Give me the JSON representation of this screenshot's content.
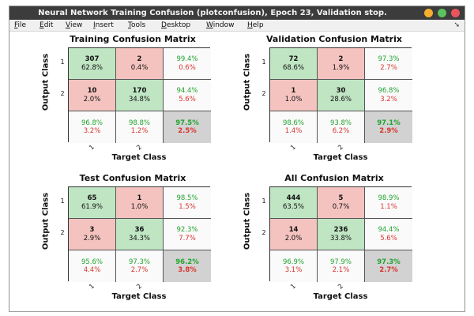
{
  "window": {
    "title": "Neural Network Training Confusion (plotconfusion), Epoch 23, Validation stop."
  },
  "menu": [
    {
      "mnemonic": "F",
      "rest": "ile"
    },
    {
      "mnemonic": "E",
      "rest": "dit"
    },
    {
      "mnemonic": "V",
      "rest": "iew"
    },
    {
      "mnemonic": "I",
      "rest": "nsert"
    },
    {
      "mnemonic": "T",
      "rest": "ools"
    },
    {
      "mnemonic": "D",
      "rest": "esktop"
    },
    {
      "mnemonic": "W",
      "rest": "indow"
    },
    {
      "mnemonic": "H",
      "rest": "elp"
    }
  ],
  "menu_arrow": "➘",
  "ylabel": "Output Class",
  "xlabel": "Target Class",
  "class_labels": [
    "1",
    "2"
  ],
  "colors": {
    "correct": "#bfe5c3",
    "incorrect": "#f4c3bf",
    "summary": "#d2d2d2",
    "pct_good": "#22a32e",
    "pct_bad": "#d9352f"
  },
  "panels": [
    {
      "title": "Training Confusion Matrix",
      "cells": [
        {
          "a": "307",
          "b": "62.8%"
        },
        {
          "a": "2",
          "b": "0.4%"
        },
        {
          "a": "99.4%",
          "b": "0.6%"
        },
        {
          "a": "10",
          "b": "2.0%"
        },
        {
          "a": "170",
          "b": "34.8%"
        },
        {
          "a": "94.4%",
          "b": "5.6%"
        },
        {
          "a": "96.8%",
          "b": "3.2%"
        },
        {
          "a": "98.8%",
          "b": "1.2%"
        },
        {
          "a": "97.5%",
          "b": "2.5%"
        }
      ]
    },
    {
      "title": "Validation Confusion Matrix",
      "cells": [
        {
          "a": "72",
          "b": "68.6%"
        },
        {
          "a": "2",
          "b": "1.9%"
        },
        {
          "a": "97.3%",
          "b": "2.7%"
        },
        {
          "a": "1",
          "b": "1.0%"
        },
        {
          "a": "30",
          "b": "28.6%"
        },
        {
          "a": "96.8%",
          "b": "3.2%"
        },
        {
          "a": "98.6%",
          "b": "1.4%"
        },
        {
          "a": "93.8%",
          "b": "6.2%"
        },
        {
          "a": "97.1%",
          "b": "2.9%"
        }
      ]
    },
    {
      "title": "Test Confusion Matrix",
      "cells": [
        {
          "a": "65",
          "b": "61.9%"
        },
        {
          "a": "1",
          "b": "1.0%"
        },
        {
          "a": "98.5%",
          "b": "1.5%"
        },
        {
          "a": "3",
          "b": "2.9%"
        },
        {
          "a": "36",
          "b": "34.3%"
        },
        {
          "a": "92.3%",
          "b": "7.7%"
        },
        {
          "a": "95.6%",
          "b": "4.4%"
        },
        {
          "a": "97.3%",
          "b": "2.7%"
        },
        {
          "a": "96.2%",
          "b": "3.8%"
        }
      ]
    },
    {
      "title": "All Confusion Matrix",
      "cells": [
        {
          "a": "444",
          "b": "63.5%"
        },
        {
          "a": "5",
          "b": "0.7%"
        },
        {
          "a": "98.9%",
          "b": "1.1%"
        },
        {
          "a": "14",
          "b": "2.0%"
        },
        {
          "a": "236",
          "b": "33.8%"
        },
        {
          "a": "94.4%",
          "b": "5.6%"
        },
        {
          "a": "96.9%",
          "b": "3.1%"
        },
        {
          "a": "97.9%",
          "b": "2.1%"
        },
        {
          "a": "97.3%",
          "b": "2.7%"
        }
      ]
    }
  ]
}
